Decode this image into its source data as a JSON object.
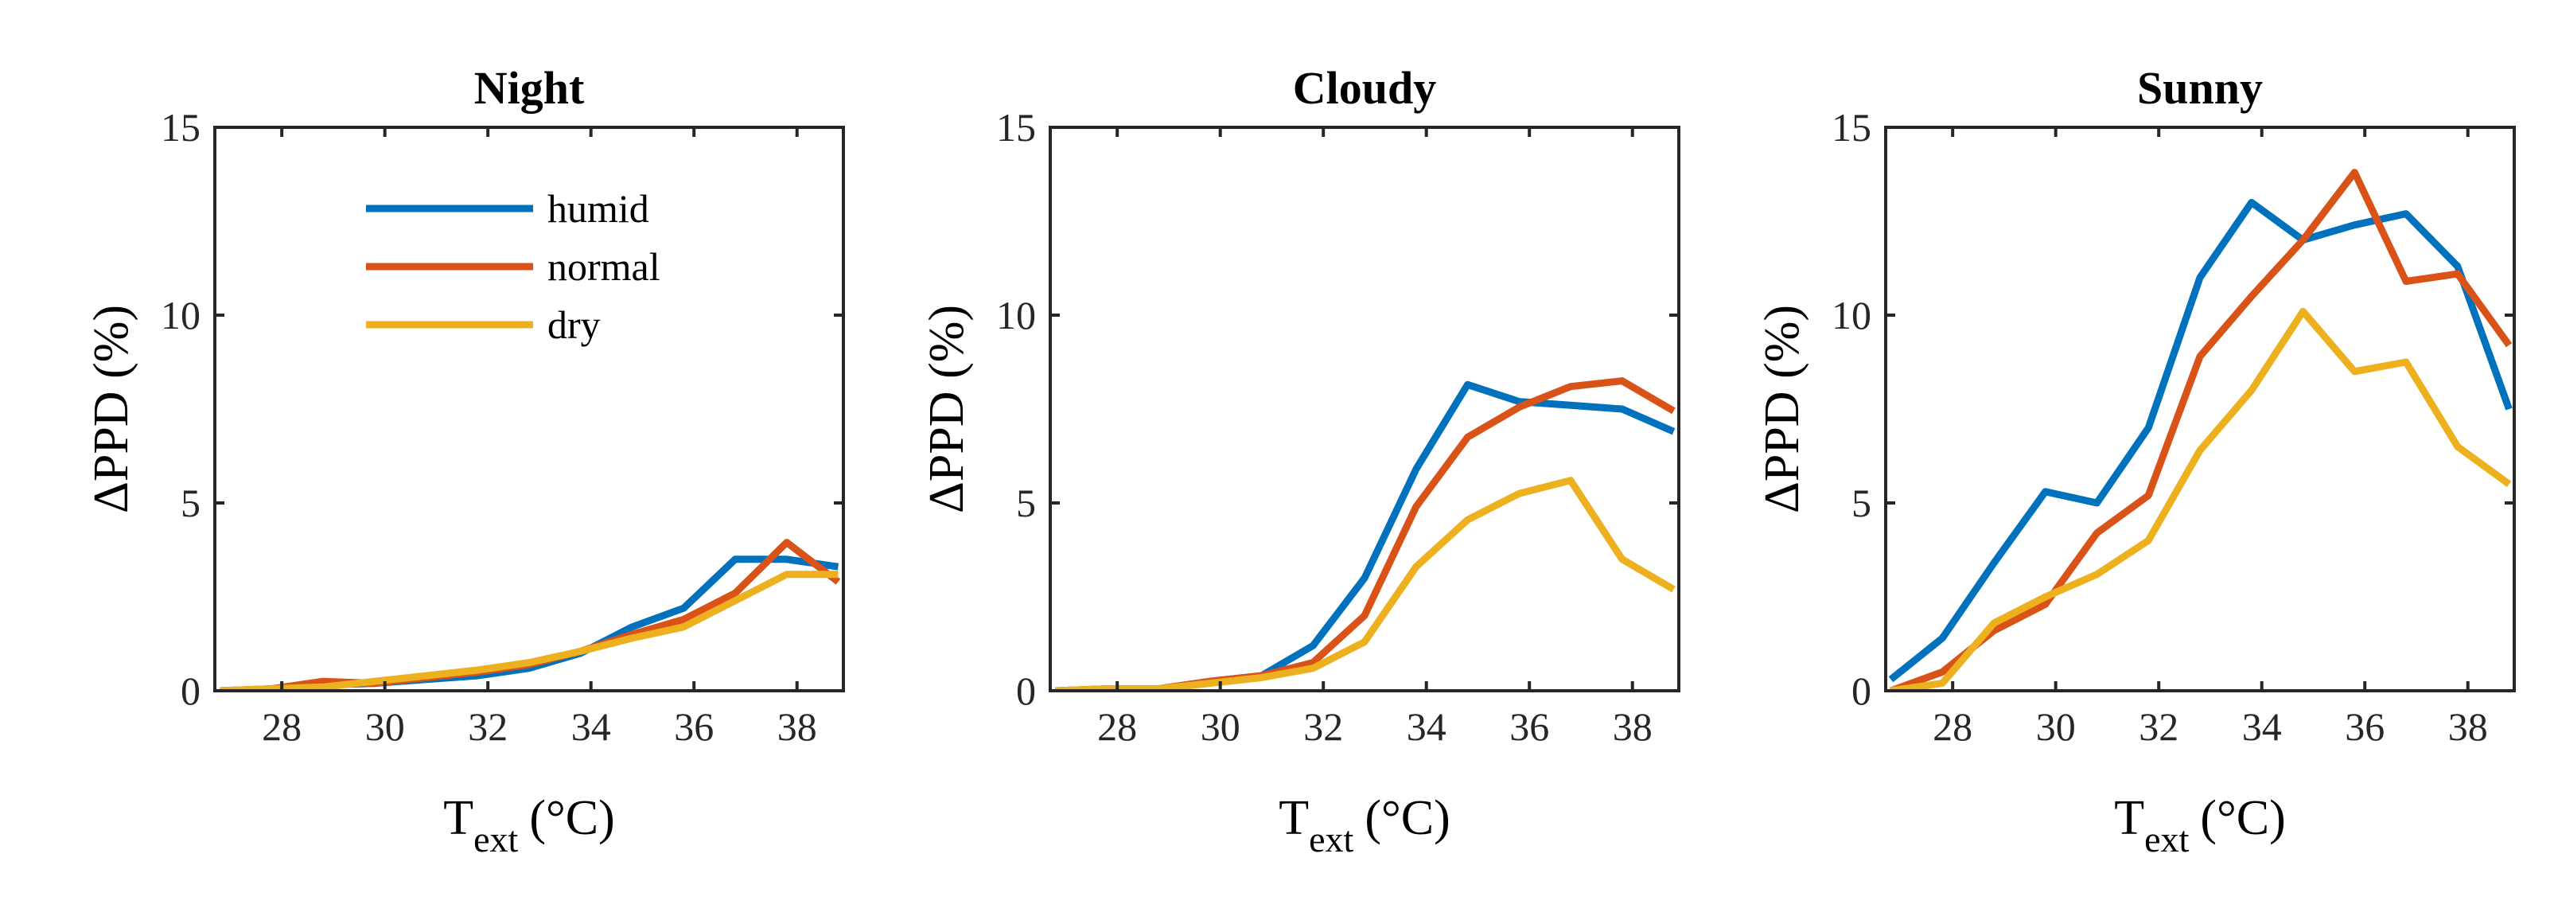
{
  "chart_data": [
    {
      "type": "line",
      "title": "Night",
      "ylabel": "ΔPPD (%)",
      "xlabel_main": "T",
      "xlabel_sub": "ext",
      "xlabel_unit": "(°C)",
      "xlim": [
        26.7,
        38.9
      ],
      "ylim": [
        0,
        15
      ],
      "xticks": [
        28,
        30,
        32,
        34,
        36,
        38
      ],
      "yticks": [
        0,
        5,
        10,
        15
      ],
      "legend": true,
      "series": [
        {
          "name": "humid",
          "color": "#0072BD",
          "x": [
            26.8,
            27.8,
            28.8,
            29.8,
            30.8,
            31.8,
            32.8,
            33.8,
            34.8,
            35.8,
            36.8,
            37.8,
            38.8
          ],
          "y": [
            0,
            0.05,
            0.15,
            0.2,
            0.3,
            0.4,
            0.6,
            1.0,
            1.7,
            2.2,
            3.5,
            3.5,
            3.3
          ]
        },
        {
          "name": "normal",
          "color": "#D95319",
          "x": [
            26.8,
            27.8,
            28.8,
            29.8,
            30.8,
            31.8,
            32.8,
            33.8,
            34.8,
            35.8,
            36.8,
            37.8,
            38.8
          ],
          "y": [
            0,
            0.05,
            0.25,
            0.2,
            0.35,
            0.5,
            0.7,
            1.05,
            1.5,
            1.9,
            2.6,
            3.95,
            2.9
          ]
        },
        {
          "name": "dry",
          "color": "#EDB120",
          "x": [
            26.8,
            27.8,
            28.8,
            29.8,
            30.8,
            31.8,
            32.8,
            33.8,
            34.8,
            35.8,
            36.8,
            37.8,
            38.8
          ],
          "y": [
            0,
            0.05,
            0.1,
            0.25,
            0.4,
            0.55,
            0.75,
            1.05,
            1.4,
            1.7,
            2.4,
            3.1,
            3.1
          ]
        }
      ]
    },
    {
      "type": "line",
      "title": "Cloudy",
      "ylabel": "ΔPPD (%)",
      "xlabel_main": "T",
      "xlabel_sub": "ext",
      "xlabel_unit": "(°C)",
      "xlim": [
        26.7,
        38.9
      ],
      "ylim": [
        0,
        15
      ],
      "xticks": [
        28,
        30,
        32,
        34,
        36,
        38
      ],
      "yticks": [
        0,
        5,
        10,
        15
      ],
      "legend": false,
      "series": [
        {
          "name": "humid",
          "color": "#0072BD",
          "x": [
            26.8,
            27.8,
            28.8,
            29.8,
            30.8,
            31.8,
            32.8,
            33.8,
            34.8,
            35.8,
            36.8,
            37.8,
            38.8
          ],
          "y": [
            0,
            0.05,
            0.05,
            0.25,
            0.4,
            1.2,
            3.0,
            5.9,
            8.15,
            7.7,
            7.6,
            7.5,
            6.9
          ]
        },
        {
          "name": "normal",
          "color": "#D95319",
          "x": [
            26.8,
            27.8,
            28.8,
            29.8,
            30.8,
            31.8,
            32.8,
            33.8,
            34.8,
            35.8,
            36.8,
            37.8,
            38.8
          ],
          "y": [
            0,
            0.05,
            0.05,
            0.25,
            0.4,
            0.75,
            2.0,
            4.9,
            6.75,
            7.55,
            8.1,
            8.25,
            7.45
          ]
        },
        {
          "name": "dry",
          "color": "#EDB120",
          "x": [
            26.8,
            27.8,
            28.8,
            29.8,
            30.8,
            31.8,
            32.8,
            33.8,
            34.8,
            35.8,
            36.8,
            37.8,
            38.8
          ],
          "y": [
            0,
            0.05,
            0.05,
            0.2,
            0.35,
            0.6,
            1.3,
            3.3,
            4.55,
            5.25,
            5.6,
            3.5,
            2.7
          ]
        }
      ]
    },
    {
      "type": "line",
      "title": "Sunny",
      "ylabel": "ΔPPD (%)",
      "xlabel_main": "T",
      "xlabel_sub": "ext",
      "xlabel_unit": "(°C)",
      "xlim": [
        26.7,
        38.9
      ],
      "ylim": [
        0,
        15
      ],
      "xticks": [
        28,
        30,
        32,
        34,
        36,
        38
      ],
      "yticks": [
        0,
        5,
        10,
        15
      ],
      "legend": false,
      "series": [
        {
          "name": "humid",
          "color": "#0072BD",
          "x": [
            26.8,
            27.8,
            28.8,
            29.8,
            30.8,
            31.8,
            32.8,
            33.8,
            34.8,
            35.8,
            36.8,
            37.8,
            38.8
          ],
          "y": [
            0.3,
            1.4,
            3.4,
            5.3,
            5.0,
            7.0,
            11.0,
            13.0,
            12.0,
            12.4,
            12.7,
            11.3,
            7.5
          ]
        },
        {
          "name": "normal",
          "color": "#D95319",
          "x": [
            26.8,
            27.8,
            28.8,
            29.8,
            30.8,
            31.8,
            32.8,
            33.8,
            34.8,
            35.8,
            36.8,
            37.8,
            38.8
          ],
          "y": [
            0,
            0.5,
            1.6,
            2.3,
            4.2,
            5.2,
            8.9,
            10.5,
            12.0,
            13.8,
            10.9,
            11.1,
            9.2
          ]
        },
        {
          "name": "dry",
          "color": "#EDB120",
          "x": [
            26.8,
            27.8,
            28.8,
            29.8,
            30.8,
            31.8,
            32.8,
            33.8,
            34.8,
            35.8,
            36.8,
            37.8,
            38.8
          ],
          "y": [
            0,
            0.2,
            1.8,
            2.5,
            3.1,
            4.0,
            6.4,
            8.0,
            10.1,
            8.5,
            8.75,
            6.5,
            5.5
          ]
        }
      ]
    }
  ]
}
